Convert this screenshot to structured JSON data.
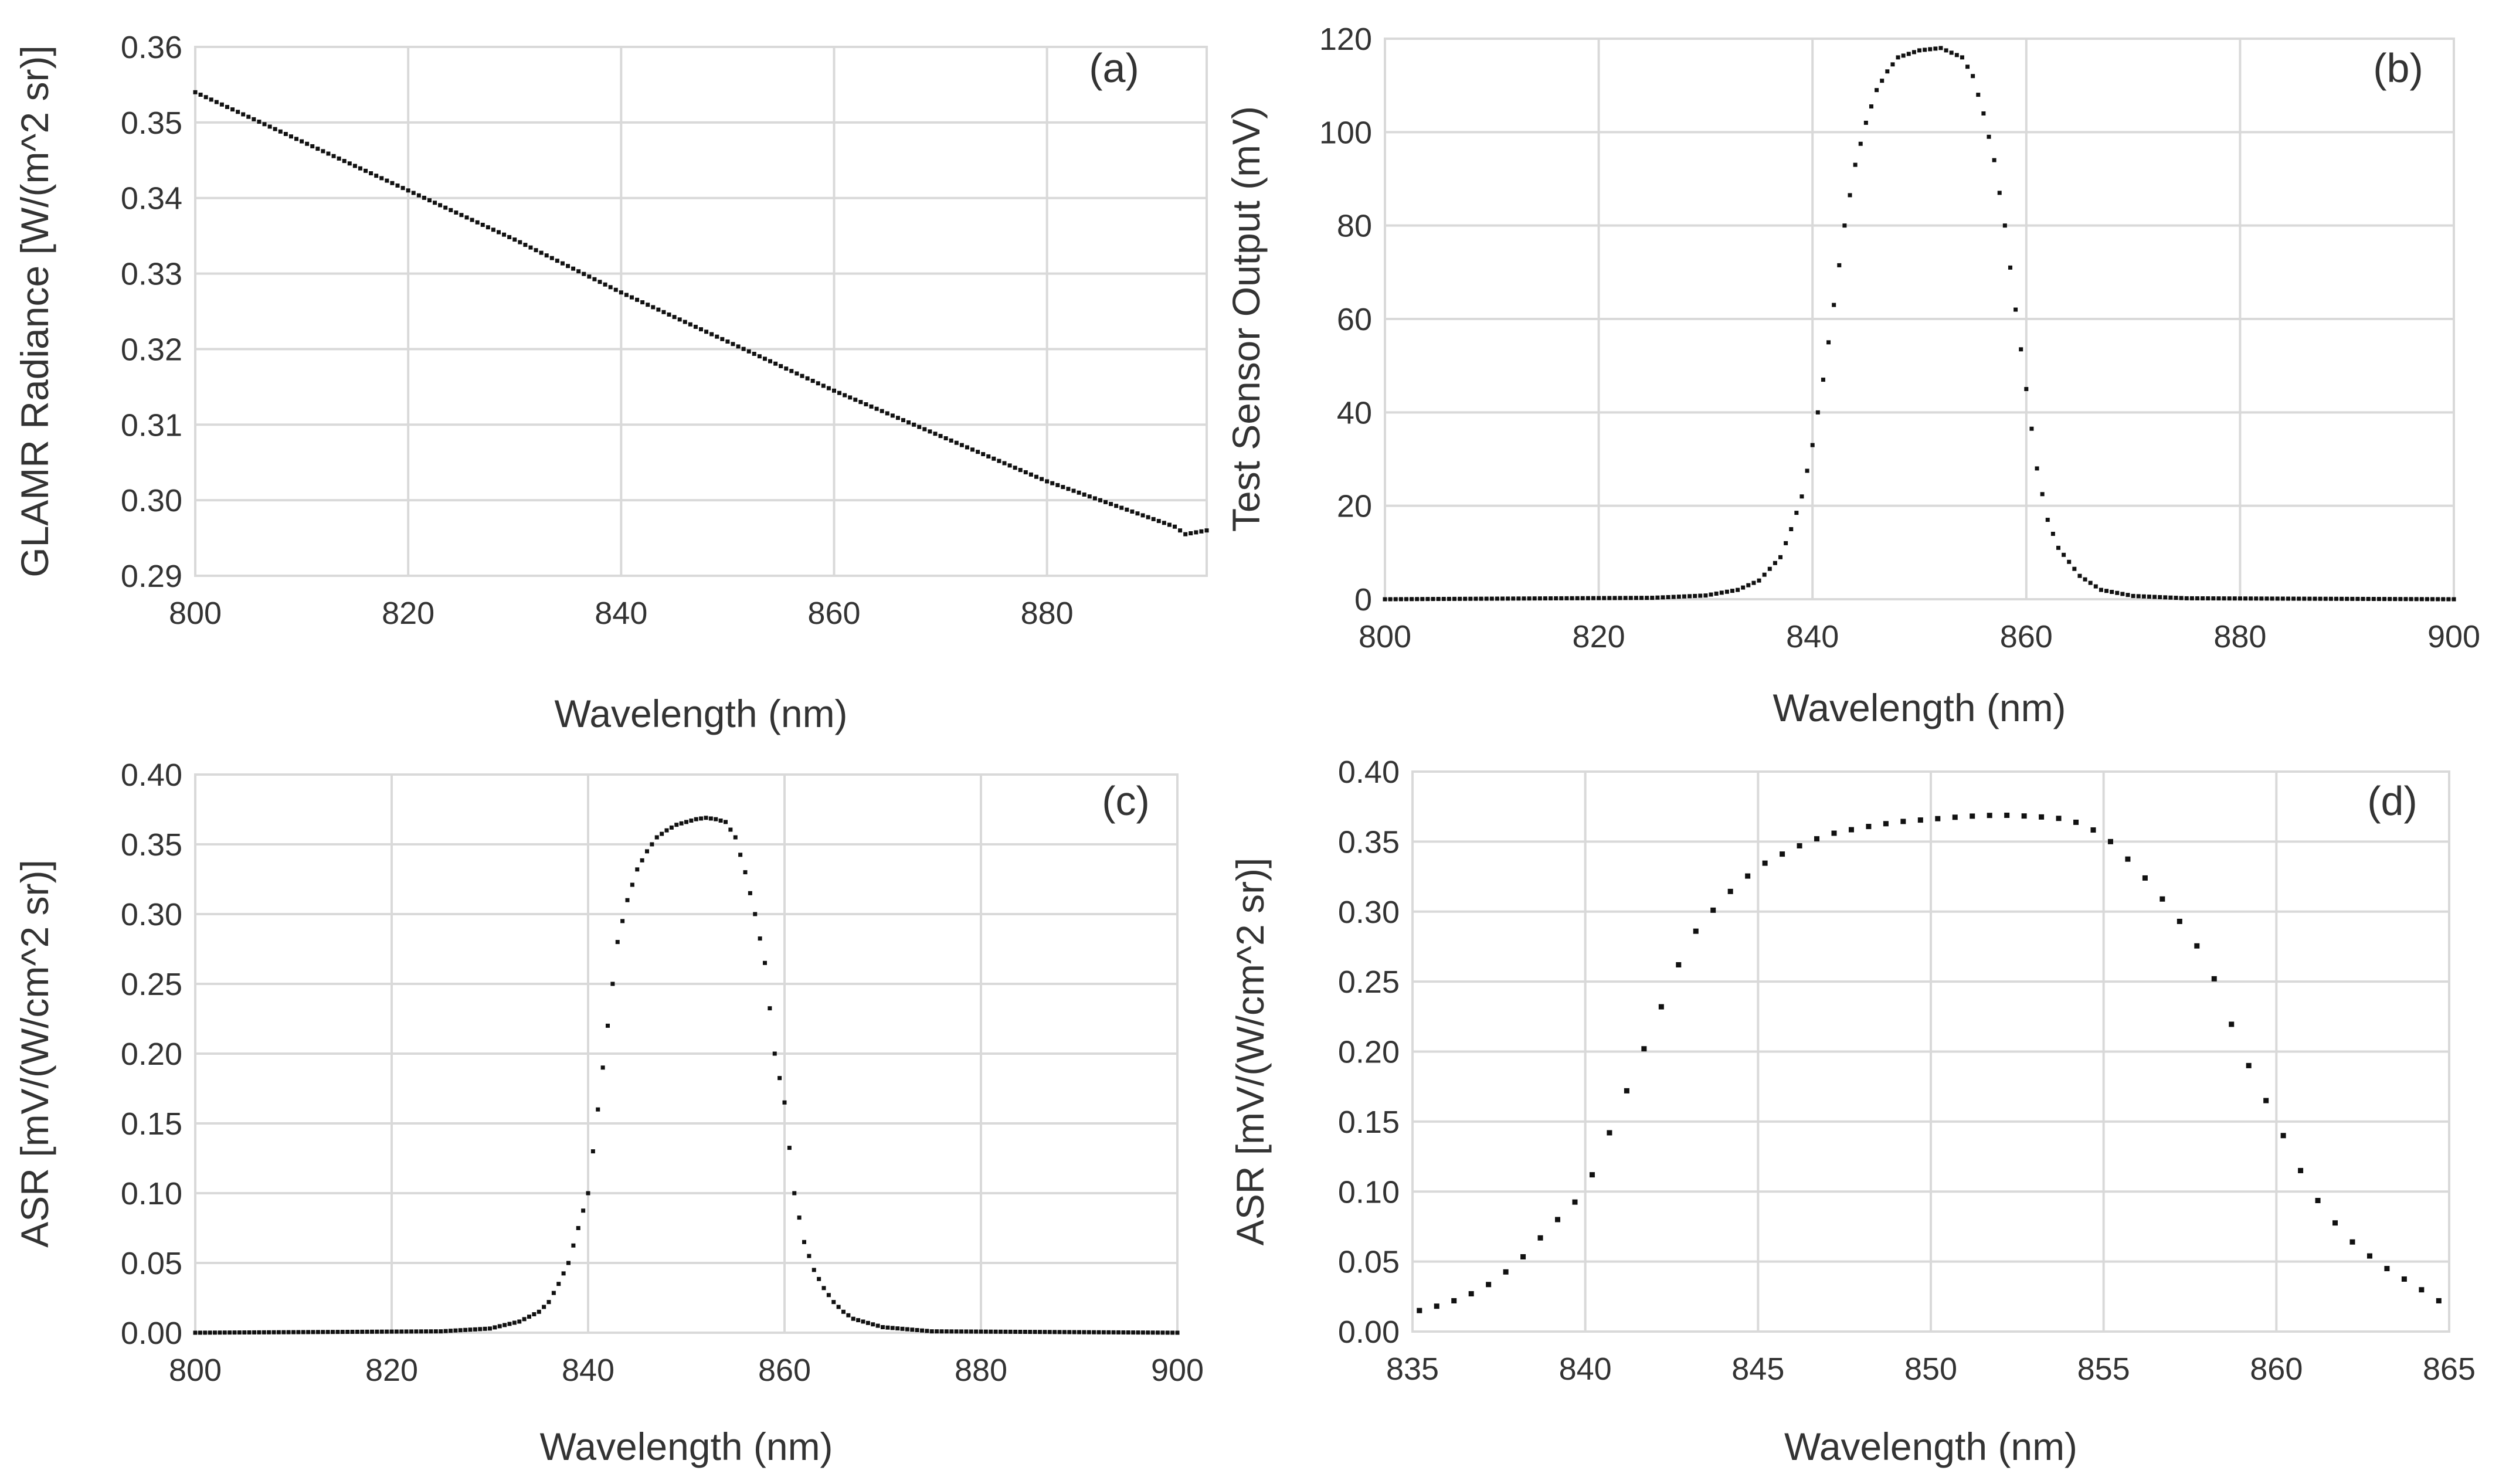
{
  "chart_data": [
    {
      "type": "scatter",
      "panel_label": "(a)",
      "xlabel": "Wavelength  (nm)",
      "ylabel": "GLAMR Radiance  [W/(m^2 sr)]",
      "xlim": [
        800,
        895
      ],
      "ylim": [
        0.29,
        0.36
      ],
      "xticks": [
        800,
        820,
        840,
        860,
        880
      ],
      "xtick_labels": [
        "800",
        "820",
        "840",
        "860",
        "880"
      ],
      "yticks": [
        0.29,
        0.3,
        0.31,
        0.32,
        0.33,
        0.34,
        0.35,
        0.36
      ],
      "ytick_labels": [
        "0.29",
        "0.30",
        "0.31",
        "0.32",
        "0.33",
        "0.34",
        "0.35",
        "0.36"
      ],
      "grid": true,
      "marker_step": 0.5,
      "series": [
        {
          "name": "GLAMR radiance",
          "x": [
            800,
            810,
            820,
            830,
            840,
            850,
            860,
            870,
            880,
            888,
            892,
            893,
            895
          ],
          "y": [
            0.354,
            0.3475,
            0.341,
            0.3345,
            0.3275,
            0.321,
            0.3145,
            0.3085,
            0.3025,
            0.2985,
            0.2965,
            0.2955,
            0.296
          ]
        }
      ]
    },
    {
      "type": "scatter",
      "panel_label": "(b)",
      "xlabel": "Wavelength (nm)",
      "ylabel": "Test Sensor Output (mV)",
      "xlim": [
        800,
        900
      ],
      "ylim": [
        0,
        120
      ],
      "xticks": [
        800,
        820,
        840,
        860,
        880,
        900
      ],
      "xtick_labels": [
        "800",
        "820",
        "840",
        "860",
        "880",
        "900"
      ],
      "yticks": [
        0,
        20,
        40,
        60,
        80,
        100,
        120
      ],
      "ytick_labels": [
        "0",
        "20",
        "40",
        "60",
        "80",
        "100",
        "120"
      ],
      "grid": true,
      "marker_step": 0.5,
      "series": [
        {
          "name": "Test sensor output",
          "x": [
            800,
            825,
            830,
            833,
            835,
            837,
            838,
            839,
            840,
            841,
            842,
            843,
            844,
            845,
            846,
            847,
            848,
            850,
            852,
            854,
            855,
            856,
            857,
            858,
            859,
            860,
            861,
            862,
            863,
            865,
            867,
            870,
            875,
            900
          ],
          "y": [
            0,
            0.3,
            0.8,
            2,
            4,
            9,
            15,
            22,
            33,
            47,
            63,
            80,
            93,
            102,
            109,
            113,
            116,
            117.5,
            118,
            116,
            112,
            104,
            94,
            80,
            62,
            45,
            28,
            17,
            11,
            5,
            2,
            0.7,
            0.2,
            0
          ]
        }
      ]
    },
    {
      "type": "scatter",
      "panel_label": "(c)",
      "xlabel": "Wavelength (nm)",
      "ylabel": "ASR [mV/(W/cm^2 sr)]",
      "xlim": [
        800,
        900
      ],
      "ylim": [
        0,
        0.4
      ],
      "xticks": [
        800,
        820,
        840,
        860,
        880,
        900
      ],
      "xtick_labels": [
        "800",
        "820",
        "840",
        "860",
        "880",
        "900"
      ],
      "yticks": [
        0,
        0.05,
        0.1,
        0.15,
        0.2,
        0.25,
        0.3,
        0.35,
        0.4
      ],
      "ytick_labels": [
        "0.00",
        "0.05",
        "0.10",
        "0.15",
        "0.20",
        "0.25",
        "0.30",
        "0.35",
        "0.40"
      ],
      "grid": true,
      "marker_step": 0.5,
      "series": [
        {
          "name": "ASR",
          "x": [
            800,
            825,
            830,
            833,
            835,
            836,
            837,
            838,
            839,
            840,
            841,
            842,
            843,
            844,
            845,
            846,
            847,
            848,
            849,
            850,
            851,
            852,
            853,
            854,
            855,
            856,
            857,
            858,
            859,
            860,
            861,
            862,
            863,
            864,
            865,
            866,
            867,
            870,
            875,
            900
          ],
          "y": [
            0,
            0.001,
            0.003,
            0.008,
            0.015,
            0.022,
            0.035,
            0.05,
            0.075,
            0.1,
            0.16,
            0.22,
            0.28,
            0.31,
            0.332,
            0.345,
            0.355,
            0.36,
            0.364,
            0.366,
            0.368,
            0.369,
            0.368,
            0.366,
            0.355,
            0.33,
            0.3,
            0.265,
            0.2,
            0.165,
            0.1,
            0.065,
            0.045,
            0.032,
            0.022,
            0.015,
            0.01,
            0.004,
            0.001,
            0
          ]
        }
      ]
    },
    {
      "type": "scatter",
      "panel_label": "(d)",
      "xlabel": "Wavelength (nm)",
      "ylabel": "ASR [mV/(W/cm^2 sr)]",
      "xlim": [
        835,
        865
      ],
      "ylim": [
        0,
        0.4
      ],
      "xticks": [
        835,
        840,
        845,
        850,
        855,
        860,
        865
      ],
      "xtick_labels": [
        "835",
        "840",
        "845",
        "850",
        "855",
        "860",
        "865"
      ],
      "yticks": [
        0,
        0.05,
        0.1,
        0.15,
        0.2,
        0.25,
        0.3,
        0.35,
        0.4
      ],
      "ytick_labels": [
        "0.00",
        "0.05",
        "0.10",
        "0.15",
        "0.20",
        "0.25",
        "0.30",
        "0.35",
        "0.40"
      ],
      "grid": true,
      "marker_step": 0.5,
      "series": [
        {
          "name": "ASR (zoom)",
          "x": [
            835.2,
            836,
            837,
            838,
            839,
            840,
            841,
            842,
            843,
            844,
            845,
            846,
            847,
            848,
            849,
            850,
            851,
            852,
            853,
            854,
            855,
            856,
            857,
            858,
            859,
            860,
            861,
            862,
            863,
            864,
            864.7
          ],
          "y": [
            0.015,
            0.02,
            0.03,
            0.048,
            0.075,
            0.1,
            0.16,
            0.22,
            0.28,
            0.31,
            0.332,
            0.345,
            0.355,
            0.36,
            0.364,
            0.366,
            0.368,
            0.369,
            0.368,
            0.366,
            0.355,
            0.33,
            0.3,
            0.265,
            0.2,
            0.15,
            0.1,
            0.068,
            0.048,
            0.033,
            0.022
          ]
        }
      ]
    }
  ]
}
